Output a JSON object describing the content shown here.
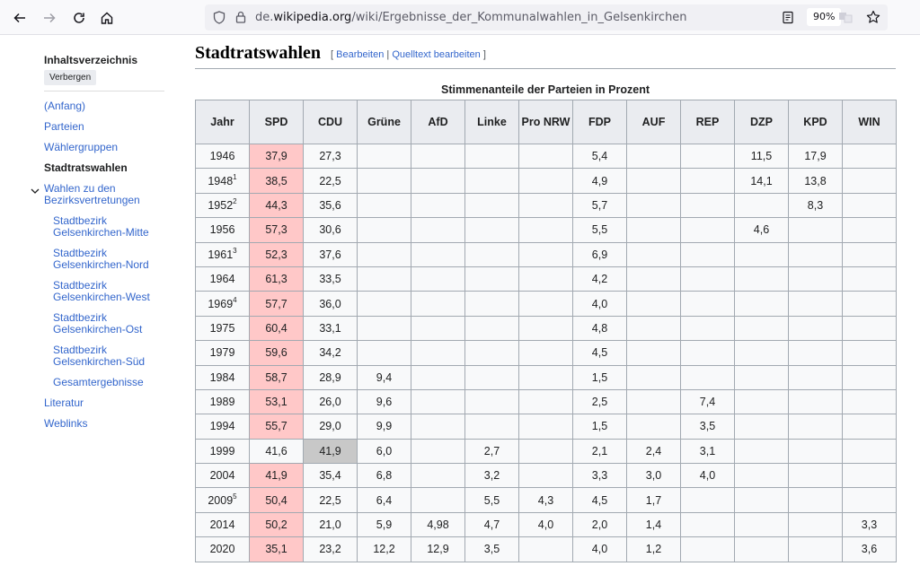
{
  "browser": {
    "url_prefix": "de.",
    "url_domain": "wikipedia.org",
    "url_path": "/wiki/Ergebnisse_der_Kommunalwahlen_in_Gelsenkirchen",
    "zoom": "90%"
  },
  "toc": {
    "title": "Inhaltsverzeichnis",
    "hide_button": "Verbergen",
    "items": [
      {
        "label": "(Anfang)"
      },
      {
        "label": "Parteien"
      },
      {
        "label": "Wählergruppen"
      },
      {
        "label": "Stadtratswahlen"
      },
      {
        "label": "Wahlen zu den",
        "label2": "Bezirksvertretungen"
      },
      {
        "label": "Stadtbezirk",
        "label2": "Gelsenkirchen-Mitte"
      },
      {
        "label": "Stadtbezirk",
        "label2": "Gelsenkirchen-Nord"
      },
      {
        "label": "Stadtbezirk",
        "label2": "Gelsenkirchen-West"
      },
      {
        "label": "Stadtbezirk",
        "label2": "Gelsenkirchen-Ost"
      },
      {
        "label": "Stadtbezirk",
        "label2": "Gelsenkirchen-Süd"
      },
      {
        "label": "Gesamtergebnisse"
      },
      {
        "label": "Literatur"
      },
      {
        "label": "Weblinks"
      }
    ]
  },
  "section": {
    "title": "Stadtratswahlen",
    "edit_open": "[ ",
    "edit_link": "Bearbeiten",
    "edit_sep": " | ",
    "source_link": "Quelltext bearbeiten",
    "edit_close": " ]"
  },
  "table": {
    "caption": "Stimmenanteile der Parteien in Prozent",
    "headers": [
      "Jahr",
      "SPD",
      "CDU",
      "Grüne",
      "AfD",
      "Linke",
      "Pro NRW",
      "FDP",
      "AUF",
      "REP",
      "DZP",
      "KPD",
      "WIN"
    ],
    "rows": [
      {
        "year": "1946",
        "sup": "",
        "cells": [
          "37,9",
          "27,3",
          "",
          "",
          "",
          "",
          "5,4",
          "",
          "",
          "11,5",
          "17,9",
          ""
        ],
        "winner": "SPD"
      },
      {
        "year": "1948",
        "sup": "1",
        "cells": [
          "38,5",
          "22,5",
          "",
          "",
          "",
          "",
          "4,9",
          "",
          "",
          "14,1",
          "13,8",
          ""
        ],
        "winner": "SPD"
      },
      {
        "year": "1952",
        "sup": "2",
        "cells": [
          "44,3",
          "35,6",
          "",
          "",
          "",
          "",
          "5,7",
          "",
          "",
          "",
          "8,3",
          ""
        ],
        "winner": "SPD"
      },
      {
        "year": "1956",
        "sup": "",
        "cells": [
          "57,3",
          "30,6",
          "",
          "",
          "",
          "",
          "5,5",
          "",
          "",
          "4,6",
          "",
          ""
        ],
        "winner": "SPD"
      },
      {
        "year": "1961",
        "sup": "3",
        "cells": [
          "52,3",
          "37,6",
          "",
          "",
          "",
          "",
          "6,9",
          "",
          "",
          "",
          "",
          ""
        ],
        "winner": "SPD"
      },
      {
        "year": "1964",
        "sup": "",
        "cells": [
          "61,3",
          "33,5",
          "",
          "",
          "",
          "",
          "4,2",
          "",
          "",
          "",
          "",
          ""
        ],
        "winner": "SPD"
      },
      {
        "year": "1969",
        "sup": "4",
        "cells": [
          "57,7",
          "36,0",
          "",
          "",
          "",
          "",
          "4,0",
          "",
          "",
          "",
          "",
          ""
        ],
        "winner": "SPD"
      },
      {
        "year": "1975",
        "sup": "",
        "cells": [
          "60,4",
          "33,1",
          "",
          "",
          "",
          "",
          "4,8",
          "",
          "",
          "",
          "",
          ""
        ],
        "winner": "SPD"
      },
      {
        "year": "1979",
        "sup": "",
        "cells": [
          "59,6",
          "34,2",
          "",
          "",
          "",
          "",
          "4,5",
          "",
          "",
          "",
          "",
          ""
        ],
        "winner": "SPD"
      },
      {
        "year": "1984",
        "sup": "",
        "cells": [
          "58,7",
          "28,9",
          "9,4",
          "",
          "",
          "",
          "1,5",
          "",
          "",
          "",
          "",
          ""
        ],
        "winner": "SPD"
      },
      {
        "year": "1989",
        "sup": "",
        "cells": [
          "53,1",
          "26,0",
          "9,6",
          "",
          "",
          "",
          "2,5",
          "",
          "7,4",
          "",
          "",
          ""
        ],
        "winner": "SPD"
      },
      {
        "year": "1994",
        "sup": "",
        "cells": [
          "55,7",
          "29,0",
          "9,9",
          "",
          "",
          "",
          "1,5",
          "",
          "3,5",
          "",
          "",
          ""
        ],
        "winner": "SPD"
      },
      {
        "year": "1999",
        "sup": "",
        "cells": [
          "41,6",
          "41,9",
          "6,0",
          "",
          "2,7",
          "",
          "2,1",
          "2,4",
          "3,1",
          "",
          "",
          ""
        ],
        "winner": "CDU"
      },
      {
        "year": "2004",
        "sup": "",
        "cells": [
          "41,9",
          "35,4",
          "6,8",
          "",
          "3,2",
          "",
          "3,3",
          "3,0",
          "4,0",
          "",
          "",
          ""
        ],
        "winner": "SPD"
      },
      {
        "year": "2009",
        "sup": "5",
        "cells": [
          "50,4",
          "22,5",
          "6,4",
          "",
          "5,5",
          "4,3",
          "4,5",
          "1,7",
          "",
          "",
          "",
          ""
        ],
        "winner": "SPD"
      },
      {
        "year": "2014",
        "sup": "",
        "cells": [
          "50,2",
          "21,0",
          "5,9",
          "4,98",
          "4,7",
          "4,0",
          "2,0",
          "1,4",
          "",
          "",
          "",
          "3,3"
        ],
        "winner": "SPD"
      },
      {
        "year": "2020",
        "sup": "",
        "cells": [
          "35,1",
          "23,2",
          "12,2",
          "12,9",
          "3,5",
          "",
          "4,0",
          "1,2",
          "",
          "",
          "",
          "3,6"
        ],
        "winner": "SPD"
      }
    ]
  }
}
